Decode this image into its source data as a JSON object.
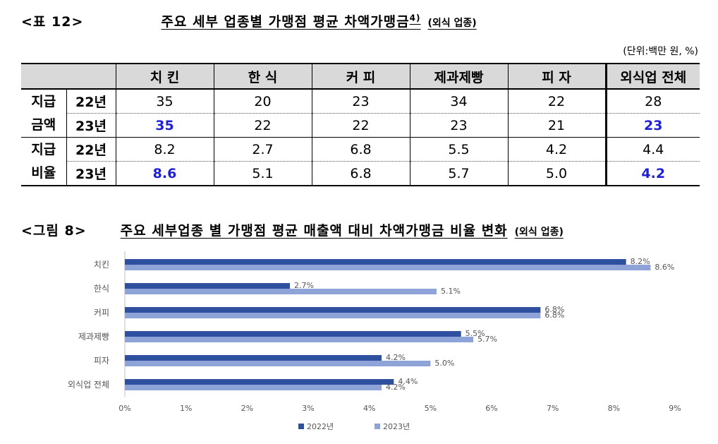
{
  "table_header": {
    "number": "<표 12>",
    "title": "주요 세부 업종별 가맹점 평균 차액가맹금",
    "superscript": "4)",
    "note": "(외식 업종)",
    "unit": "(단위:백만 원, %)"
  },
  "table": {
    "columns": [
      "치 킨",
      "한 식",
      "커 피",
      "제과제빵",
      "피 자",
      "외식업 전체"
    ],
    "groups": [
      {
        "label_lines": [
          "지급",
          "금액"
        ],
        "rows": [
          {
            "year": "22년",
            "values": [
              "35",
              "20",
              "23",
              "34",
              "22",
              "28"
            ]
          },
          {
            "year": "23년",
            "values": [
              "35",
              "22",
              "22",
              "23",
              "21",
              "23"
            ]
          }
        ]
      },
      {
        "label_lines": [
          "지급",
          "비율"
        ],
        "rows": [
          {
            "year": "22년",
            "values": [
              "8.2",
              "2.7",
              "6.8",
              "5.5",
              "4.2",
              "4.4"
            ]
          },
          {
            "year": "23년",
            "values": [
              "8.6",
              "5.1",
              "6.8",
              "5.7",
              "5.0",
              "4.2"
            ]
          }
        ]
      }
    ],
    "highlight_color": "#1f1fd6"
  },
  "figure_header": {
    "number": "<그림 8>",
    "title": "주요 세부업종 별 가맹점 평균 매출액 대비 차액가맹금 비율 변화",
    "note": "(외식 업종)"
  },
  "chart_data": {
    "type": "bar",
    "orientation": "horizontal",
    "categories": [
      "치킨",
      "한식",
      "커피",
      "제과제빵",
      "피자",
      "외식업 전체"
    ],
    "series": [
      {
        "name": "2022년",
        "values": [
          8.2,
          2.7,
          6.8,
          5.5,
          4.2,
          4.4
        ],
        "labels": [
          "8.2%",
          "2.7%",
          "6.8%",
          "5.5%",
          "4.2%",
          "4.4%"
        ],
        "color": "#2f4f9f"
      },
      {
        "name": "2023년",
        "values": [
          8.6,
          5.1,
          6.8,
          5.7,
          5.0,
          4.2
        ],
        "labels": [
          "8.6%",
          "5.1%",
          "6.8%",
          "5.7%",
          "5.0%",
          "4.2%"
        ],
        "color": "#8ea4d8"
      }
    ],
    "x_ticks": [
      "0%",
      "1%",
      "2%",
      "3%",
      "4%",
      "5%",
      "6%",
      "7%",
      "8%",
      "9%"
    ],
    "xlim": [
      0,
      9
    ],
    "legend_position": "bottom"
  }
}
